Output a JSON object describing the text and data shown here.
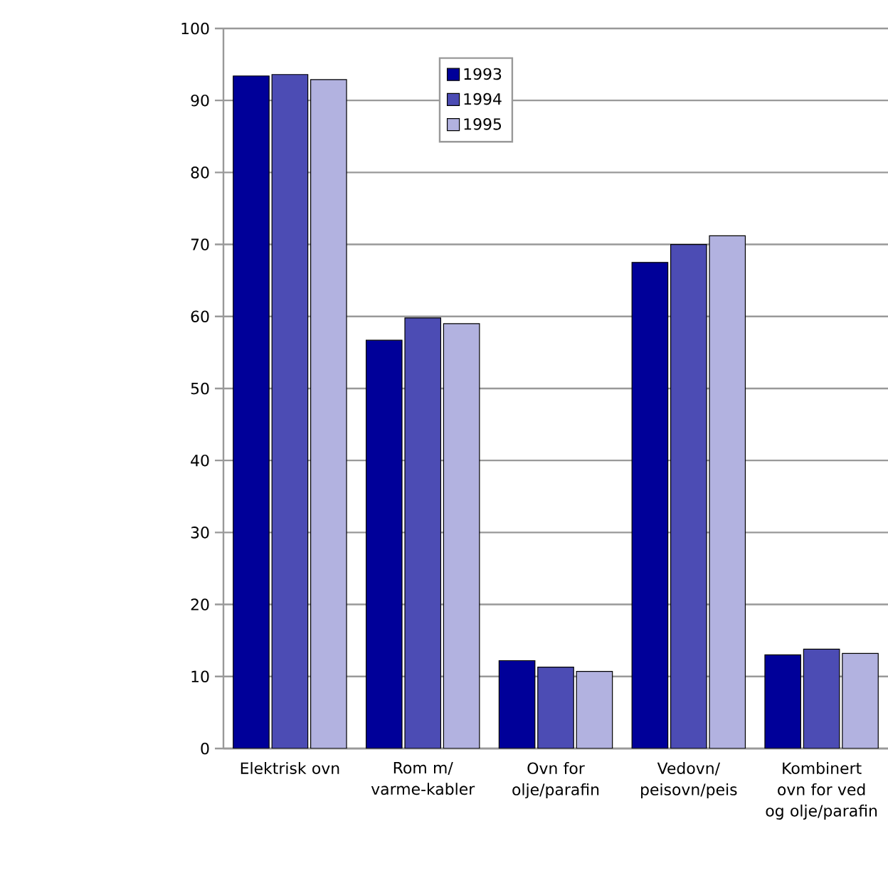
{
  "chart_data": {
    "type": "bar",
    "categories": [
      "Elektrisk ovn",
      "Rom m/varme-kabler",
      "Ovn for olje/parafin",
      "Vedovn/peisovn/peis",
      "Kombinert ovn for ved og olje/parafin"
    ],
    "series": [
      {
        "name": "1993",
        "color": "#000099",
        "values": [
          93.4,
          56.7,
          12.2,
          67.5,
          13.0
        ]
      },
      {
        "name": "1994",
        "color": "#4c4cb4",
        "values": [
          93.6,
          59.8,
          11.3,
          70.0,
          13.8
        ]
      },
      {
        "name": "1995",
        "color": "#b2b2e0",
        "values": [
          92.9,
          59.0,
          10.7,
          71.2,
          13.2
        ]
      }
    ],
    "ylim": [
      0,
      100
    ],
    "yticks": [
      0,
      10,
      20,
      30,
      40,
      50,
      60,
      70,
      80,
      90,
      100
    ],
    "grid": "y",
    "legend": "top"
  }
}
